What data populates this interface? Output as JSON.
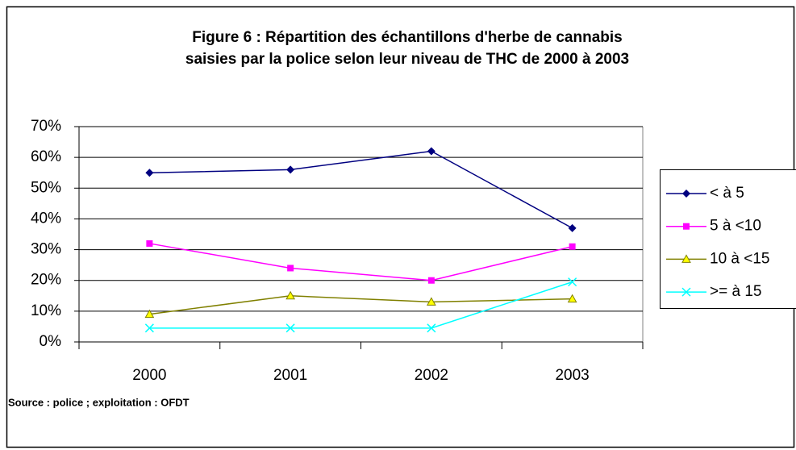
{
  "chart_data": {
    "type": "line",
    "title": [
      "Figure 6 : Répartition des échantillons d'herbe de cannabis",
      "saisies par la police selon leur niveau de THC de 2000 à 2003"
    ],
    "categories": [
      "2000",
      "2001",
      "2002",
      "2003"
    ],
    "series": [
      {
        "name": "< à 5",
        "color": "#000080",
        "marker": "diamond",
        "values": [
          55,
          56,
          62,
          37
        ]
      },
      {
        "name": "5 à <10",
        "color": "#ff00ff",
        "marker": "square",
        "values": [
          32,
          24,
          20,
          31
        ]
      },
      {
        "name": "10 à <15",
        "color": "#808000",
        "marker": "triangle",
        "values": [
          9,
          15,
          13,
          14
        ]
      },
      {
        "name": ">= à 15",
        "color": "#00ffff",
        "marker": "x",
        "values": [
          4.5,
          4.5,
          4.5,
          19.5
        ]
      }
    ],
    "ylim": [
      0,
      70
    ],
    "yticks": [
      {
        "value": 0,
        "label": "0%"
      },
      {
        "value": 10,
        "label": "10%"
      },
      {
        "value": 20,
        "label": "20%"
      },
      {
        "value": 30,
        "label": "30%"
      },
      {
        "value": 40,
        "label": "40%"
      },
      {
        "value": 50,
        "label": "50%"
      },
      {
        "value": 60,
        "label": "60%"
      },
      {
        "value": 70,
        "label": "70%"
      }
    ],
    "grid": true,
    "legend": "right",
    "note": "Source : police ; exploitation : OFDT"
  }
}
